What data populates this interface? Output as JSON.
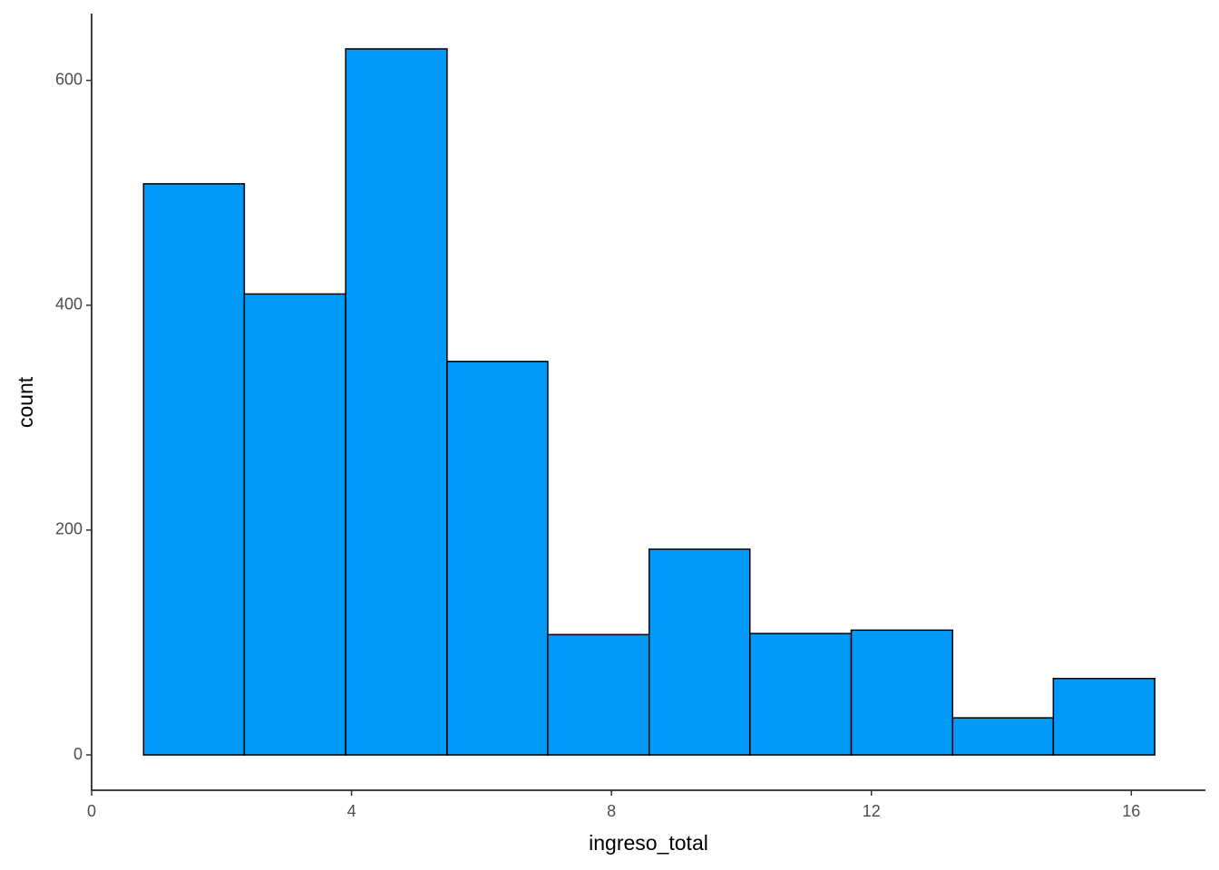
{
  "chart_data": {
    "type": "histogram",
    "x_label": "ingreso_total",
    "y_label": "count",
    "bins": [
      0.8,
      2.35,
      3.91,
      5.47,
      7.02,
      8.58,
      10.13,
      11.69,
      13.25,
      14.8,
      16.36
    ],
    "values": [
      508,
      410,
      628,
      350,
      107,
      183,
      108,
      111,
      33,
      68
    ],
    "color": "#0099f8",
    "edgecolor": "#000000",
    "xlim": [
      0,
      17.14
    ],
    "xticks": [
      0,
      4,
      8,
      12,
      16
    ],
    "ylim": [
      -31.4,
      659.4
    ],
    "yticks": [
      0,
      200,
      400,
      600
    ],
    "grid": false
  }
}
